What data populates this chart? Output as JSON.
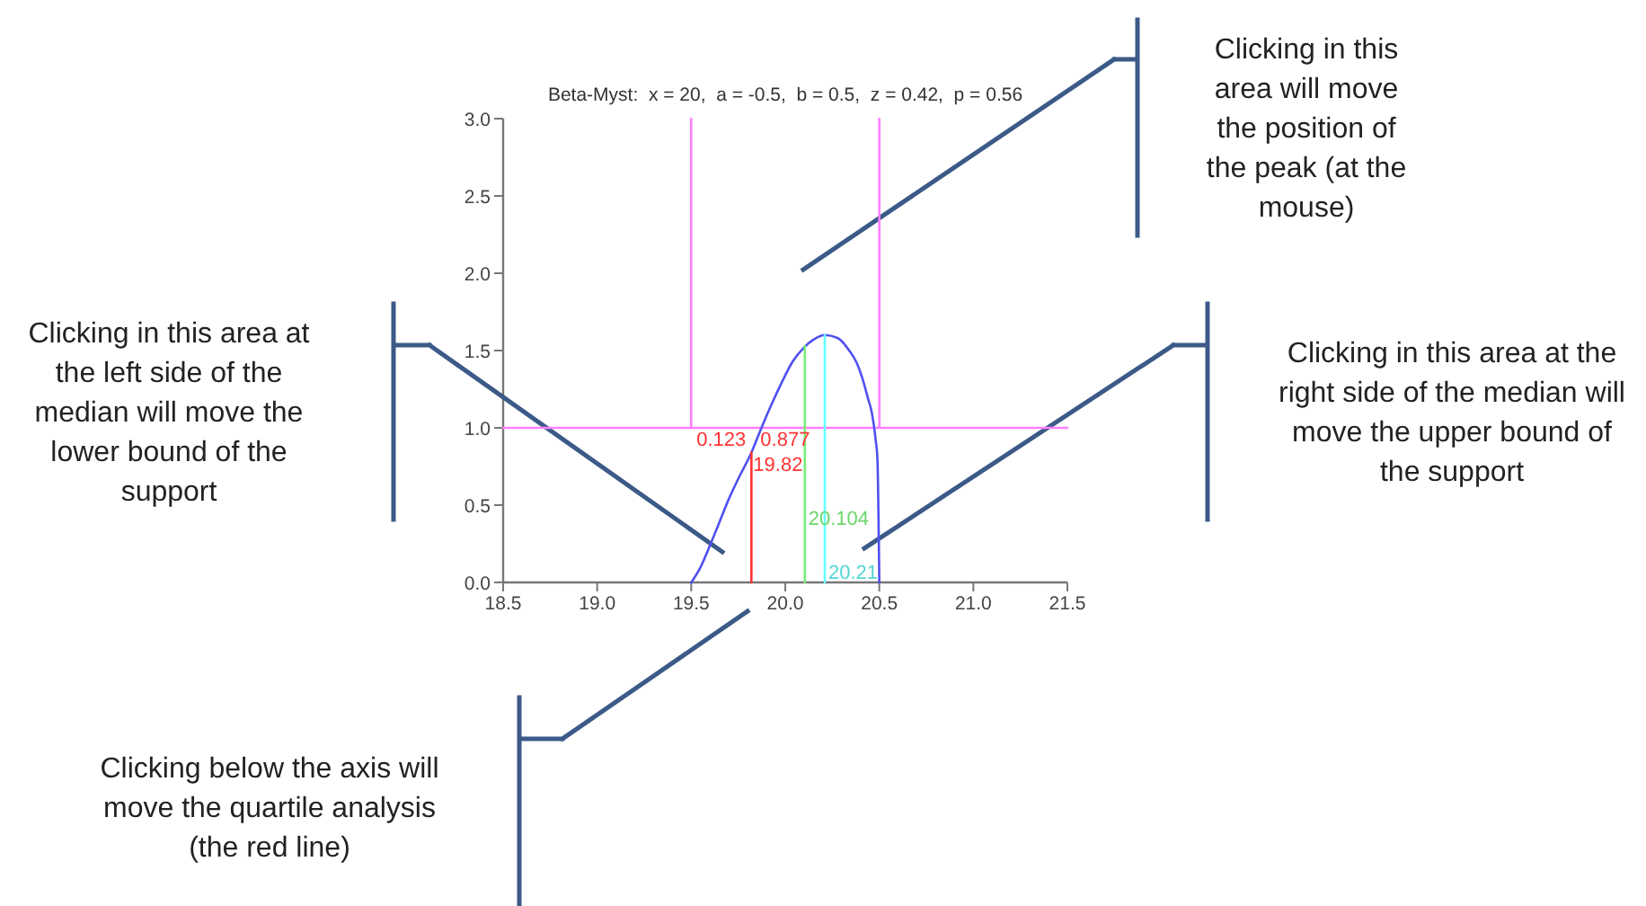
{
  "chart_data": {
    "type": "line",
    "title": "Beta-Myst:  x = 20,  a = -0.5,  b = 0.5,  z = 0.42,  p = 0.56",
    "xlim": [
      18.5,
      21.5
    ],
    "xticks": [
      18.5,
      {
        "value": 19,
        "label": "19.0"
      },
      19.5,
      {
        "value": 20,
        "label": "20.0"
      },
      20.5,
      {
        "value": 21,
        "label": "21.0"
      },
      21.5
    ],
    "ylim": [
      0,
      3
    ],
    "yticks": [
      {
        "value": 0,
        "label": "0.0"
      },
      0.5,
      {
        "value": 1,
        "label": "1.0"
      },
      1.5,
      {
        "value": 2,
        "label": "2.0"
      },
      2.5,
      {
        "value": 3,
        "label": "3.0"
      }
    ],
    "series": [
      {
        "color": "#ff80ff",
        "x": [
          18.5,
          19.5,
          19.5,
          19.5,
          20.5,
          20.5,
          20.5,
          21.5
        ],
        "values": [
          1,
          1,
          3,
          1,
          1,
          3,
          1,
          1
        ]
      },
      {
        "color": "#5050f0",
        "x": [
          19.5,
          19.55,
          19.6,
          19.65,
          19.7,
          19.75,
          19.82,
          19.87,
          19.93,
          19.98,
          20.04,
          20.1,
          20.15,
          20.21,
          20.28,
          20.34,
          20.38,
          20.41,
          20.44,
          20.46,
          20.48,
          20.49,
          20.5
        ],
        "values": [
          0,
          0.1,
          0.24,
          0.39,
          0.54,
          0.67,
          0.84,
          0.99,
          1.16,
          1.29,
          1.43,
          1.52,
          1.57,
          1.6,
          1.58,
          1.5,
          1.42,
          1.32,
          1.19,
          1.1,
          0.93,
          0.8,
          0
        ]
      },
      {
        "color": "#ff3333",
        "x": [
          19.82,
          19.82
        ],
        "values": [
          0,
          0.84
        ]
      },
      {
        "color": "#77ee77",
        "x": [
          20.104,
          20.104
        ],
        "values": [
          0,
          1.53
        ]
      },
      {
        "color": "#66ffff",
        "x": [
          20.21,
          20.21
        ],
        "values": [
          0,
          1.6
        ]
      }
    ],
    "annotations": [
      {
        "text": "0.123",
        "x": 19.82,
        "y": 0.84
      },
      {
        "text": "0.877",
        "x": 19.82,
        "y": 0.84
      },
      {
        "text": "19.82",
        "x": 19.82,
        "y": 0.84
      },
      {
        "text": "20.104",
        "x": 20.104,
        "y": 0.42
      },
      {
        "text": "20.21",
        "x": 20.21,
        "y": 0
      },
      "Clicking in this area will move the position of the peak (at the mouse)",
      "Clicking in this area at the left side of the median will move the lower bound of the support",
      "Clicking in this area at the right side of the median will move the upper bound of the support",
      "Clicking below the axis will move the quartile analysis (the red line)"
    ]
  }
}
